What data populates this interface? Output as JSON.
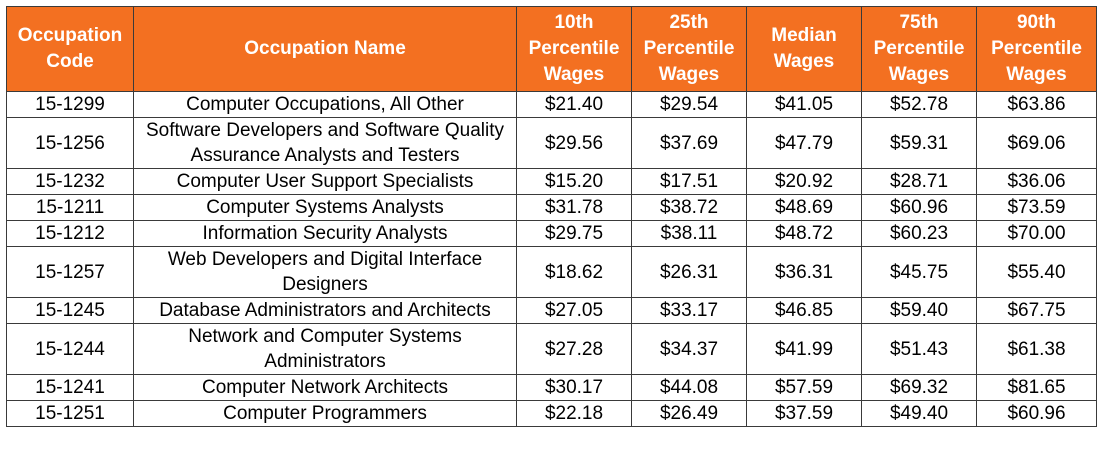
{
  "header_color": "#F37021",
  "headers": [
    "Occupation Code",
    "Occupation Name",
    "10th Percentile Wages",
    "25th Percentile Wages",
    "Median Wages",
    "75th Percentile Wages",
    "90th Percentile Wages"
  ],
  "rows": [
    {
      "code": "15-1299",
      "name": "Computer Occupations, All Other",
      "p10": "$21.40",
      "p25": "$29.54",
      "median": "$41.05",
      "p75": "$52.78",
      "p90": "$63.86"
    },
    {
      "code": "15-1256",
      "name": "Software Developers and Software Quality Assurance Analysts and Testers",
      "p10": "$29.56",
      "p25": "$37.69",
      "median": "$47.79",
      "p75": "$59.31",
      "p90": "$69.06"
    },
    {
      "code": "15-1232",
      "name": "Computer User Support Specialists",
      "p10": "$15.20",
      "p25": "$17.51",
      "median": "$20.92",
      "p75": "$28.71",
      "p90": "$36.06"
    },
    {
      "code": "15-1211",
      "name": "Computer Systems Analysts",
      "p10": "$31.78",
      "p25": "$38.72",
      "median": "$48.69",
      "p75": "$60.96",
      "p90": "$73.59"
    },
    {
      "code": "15-1212",
      "name": "Information Security Analysts",
      "p10": "$29.75",
      "p25": "$38.11",
      "median": "$48.72",
      "p75": "$60.23",
      "p90": "$70.00"
    },
    {
      "code": "15-1257",
      "name": "Web Developers and Digital Interface Designers",
      "p10": "$18.62",
      "p25": "$26.31",
      "median": "$36.31",
      "p75": "$45.75",
      "p90": "$55.40"
    },
    {
      "code": "15-1245",
      "name": "Database Administrators and Architects",
      "p10": "$27.05",
      "p25": "$33.17",
      "median": "$46.85",
      "p75": "$59.40",
      "p90": "$67.75"
    },
    {
      "code": "15-1244",
      "name": "Network and Computer Systems Administrators",
      "p10": "$27.28",
      "p25": "$34.37",
      "median": "$41.99",
      "p75": "$51.43",
      "p90": "$61.38"
    },
    {
      "code": "15-1241",
      "name": "Computer Network Architects",
      "p10": "$30.17",
      "p25": "$44.08",
      "median": "$57.59",
      "p75": "$69.32",
      "p90": "$81.65"
    },
    {
      "code": "15-1251",
      "name": "Computer Programmers",
      "p10": "$22.18",
      "p25": "$26.49",
      "median": "$37.59",
      "p75": "$49.40",
      "p90": "$60.96"
    }
  ]
}
